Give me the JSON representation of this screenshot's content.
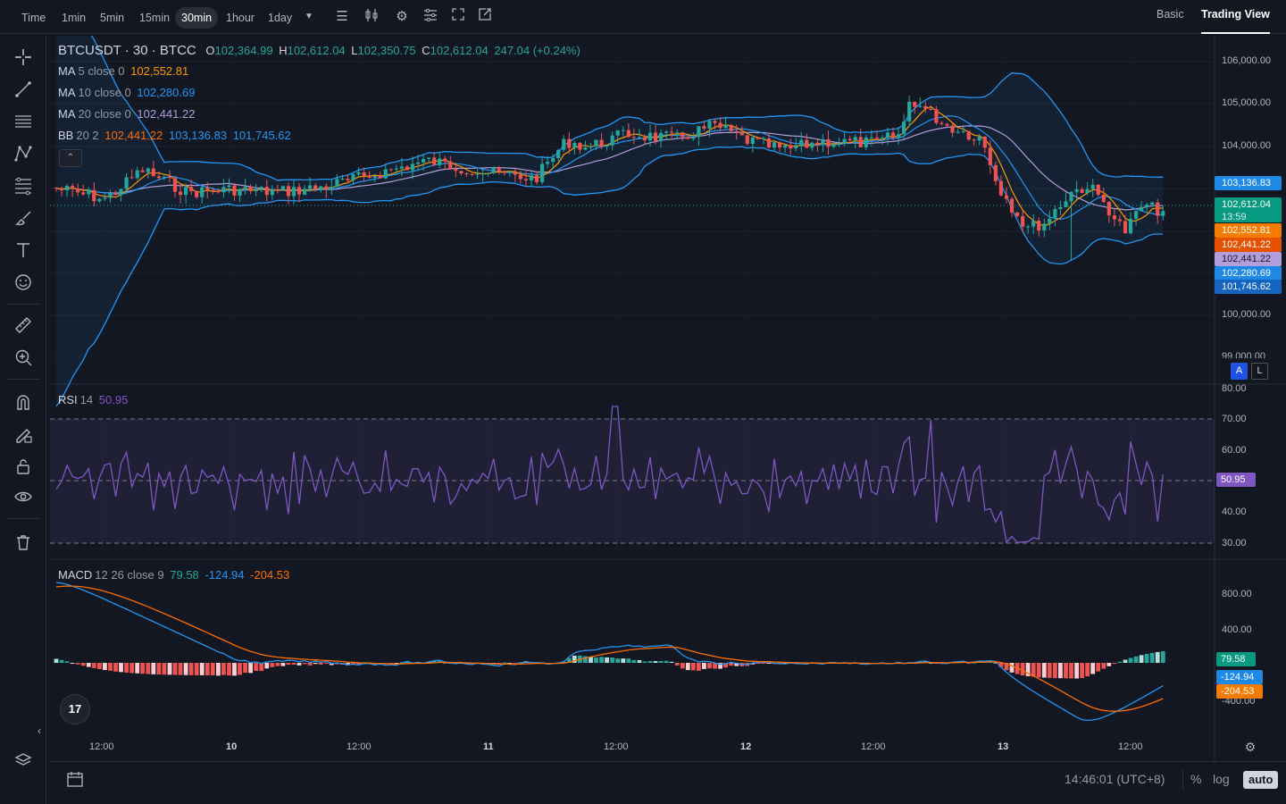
{
  "topbar": {
    "timeframes": [
      "Time",
      "1min",
      "5min",
      "15min",
      "30min",
      "1hour",
      "1day"
    ],
    "active_timeframe": "30min",
    "view_tabs": [
      "Basic",
      "Trading View"
    ],
    "active_view": "Trading View"
  },
  "legend": {
    "symbol": "BTCUSDT · 30 · BTCC",
    "o_label": "O",
    "o_value": "102,364.99",
    "h_label": "H",
    "h_value": "102,612.04",
    "l_label": "L",
    "l_value": "102,350.75",
    "c_label": "C",
    "c_value": "102,612.04",
    "change": "247.04 (+0.24%)",
    "ma5_label": "MA",
    "ma5_params": "5 close 0",
    "ma5_value": "102,552.81",
    "ma10_label": "MA",
    "ma10_params": "10 close 0",
    "ma10_value": "102,280.69",
    "ma20_label": "MA",
    "ma20_params": "20 close 0",
    "ma20_value": "102,441.22",
    "bb_label": "BB",
    "bb_params": "20 2",
    "bb_basis": "102,441.22",
    "bb_upper": "103,136.83",
    "bb_lower": "101,745.62",
    "rsi_label": "RSI",
    "rsi_params": "14",
    "rsi_value": "50.95",
    "macd_label": "MACD",
    "macd_params": "12 26 close 9",
    "macd_hist": "79.58",
    "macd_line": "-124.94",
    "macd_signal": "-204.53"
  },
  "price_axis": {
    "ticks": [
      "106,000.00",
      "105,000.00",
      "104,000.00",
      "100,000.00",
      "99,000.00"
    ],
    "tags": {
      "bb_upper": "103,136.83",
      "last_price": "102,612.04",
      "countdown": "13:59",
      "ma5": "102,552.81",
      "ma20": "102,441.22",
      "bb_basis": "102,441.22",
      "ma10": "102,280.69",
      "bb_lower": "101,745.62"
    },
    "auto_label": "A",
    "log_label": "L"
  },
  "rsi_axis": {
    "ticks": [
      "80.00",
      "70.00",
      "60.00",
      "50.95",
      "40.00",
      "30.00"
    ]
  },
  "macd_axis": {
    "ticks": [
      "800.00",
      "400.00",
      "-400.00"
    ],
    "tags": {
      "hist": "79.58",
      "macd": "-124.94",
      "signal": "-204.53"
    }
  },
  "time_axis": {
    "ticks": [
      "12:00",
      "10",
      "12:00",
      "11",
      "12:00",
      "12",
      "12:00",
      "13",
      "12:00"
    ]
  },
  "bottombar": {
    "clock": "14:46:01 (UTC+8)",
    "percent": "%",
    "log": "log",
    "auto": "auto"
  },
  "colors": {
    "up": "#26a69a",
    "down": "#ef5350",
    "ma5": "#ff9800",
    "ma10": "#2196f3",
    "ma20": "#b39ddb",
    "bb": "#2196f3",
    "rsi": "#7e57c2",
    "macd_line": "#2196f3",
    "macd_signal": "#ff6d00"
  }
}
